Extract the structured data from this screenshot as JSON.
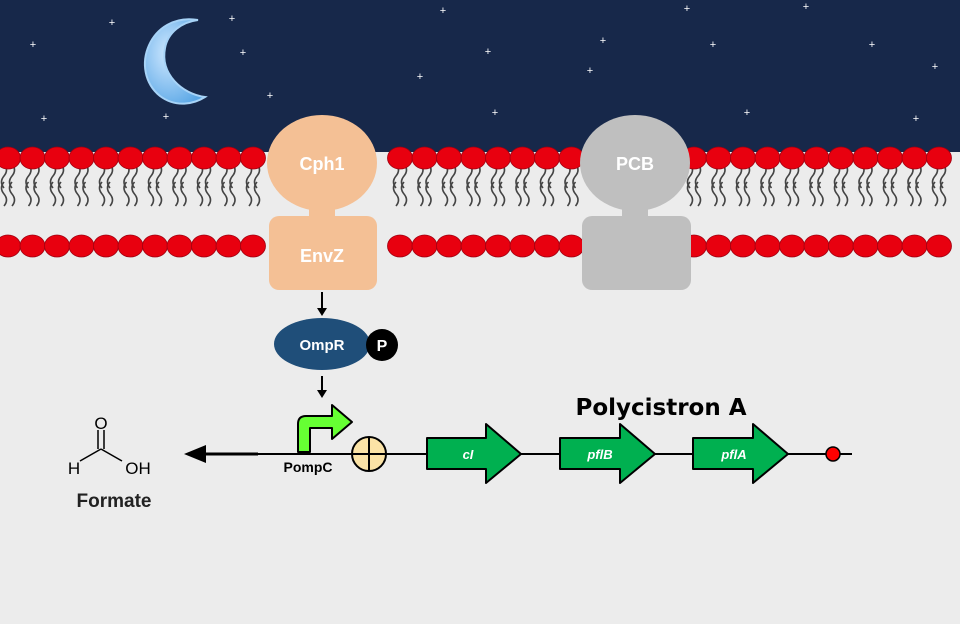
{
  "receptor": {
    "top_label": "Cph1",
    "bottom_label": "EnvZ",
    "color": "#f4c095"
  },
  "chromophore": {
    "label": "PCB",
    "color": "#bfbfbf"
  },
  "regulator": {
    "label": "OmpR",
    "phospho_label": "P",
    "color": "#1f4e79"
  },
  "promoter": {
    "label": "PompC",
    "color": "#66ff33"
  },
  "operon": {
    "title": "Polycistron A",
    "genes": [
      "cI",
      "pflB",
      "pflA"
    ],
    "gene_color": "#00b050"
  },
  "product": {
    "name": "Formate",
    "atoms": {
      "O": "O",
      "H": "H",
      "OH": "OH"
    }
  },
  "colors": {
    "sky": "#17284a",
    "membrane_head": "#e8000f",
    "cytoplasm": "#ececec",
    "moon": "#7fbdf0",
    "terminator": "#ff0000"
  },
  "icons": [
    "moon-icon",
    "star-icon",
    "phosphate-icon",
    "rbs-icon",
    "terminator-icon",
    "arrow-icon"
  ]
}
